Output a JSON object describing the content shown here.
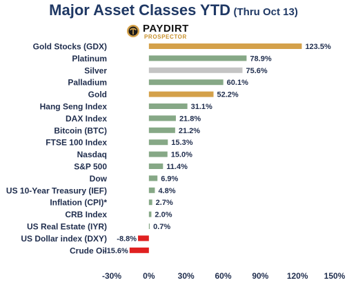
{
  "header": {
    "title": "Major Asset Classes YTD",
    "subtitle": "(Thru Oct 13)",
    "logo_name": "PAYDIRT",
    "logo_tag": "PROSPECTOR"
  },
  "chart_data": {
    "type": "bar",
    "orientation": "horizontal",
    "categories": [
      "Gold Stocks (GDX)",
      "Platinum",
      "Silver",
      "Palladium",
      "Gold",
      "Hang Seng Index",
      "DAX Index",
      "Bitcoin (BTC)",
      "FTSE 100 Index",
      "Nasdaq",
      "S&P 500",
      "Dow",
      "US 10-Year Treasury (IEF)",
      "Inflation (CPI)*",
      "CRB Index",
      "US Real Estate (IYR)",
      "US Dollar index (DXY)",
      "Crude Oil"
    ],
    "values": [
      123.5,
      78.9,
      75.6,
      60.1,
      52.2,
      31.1,
      21.8,
      21.2,
      15.3,
      15.0,
      11.4,
      6.9,
      4.8,
      2.7,
      2.0,
      0.7,
      -8.8,
      -15.6
    ],
    "value_labels": [
      "123.5%",
      "78.9%",
      "75.6%",
      "60.1%",
      "52.2%",
      "31.1%",
      "21.8%",
      "21.2%",
      "15.3%",
      "15.0%",
      "11.4%",
      "6.9%",
      "4.8%",
      "2.7%",
      "2.0%",
      "0.7%",
      "-8.8%",
      "-15.6%"
    ],
    "bar_colors": [
      "#d4a14a",
      "#86a886",
      "#c4c4c4",
      "#86a886",
      "#d4a14a",
      "#86a886",
      "#86a886",
      "#86a886",
      "#86a886",
      "#86a886",
      "#86a886",
      "#86a886",
      "#86a886",
      "#86a886",
      "#86a886",
      "#86a886",
      "#e02020",
      "#e02020"
    ],
    "xlim": [
      -30,
      150
    ],
    "xticks": [
      -30,
      0,
      30,
      60,
      90,
      120,
      150
    ],
    "xtick_labels": [
      "-30%",
      "0%",
      "30%",
      "60%",
      "90%",
      "120%",
      "150%"
    ],
    "grid": false,
    "legend": "none",
    "title": "Major Asset Classes YTD (Thru Oct 13)",
    "xlabel": "",
    "ylabel": ""
  }
}
